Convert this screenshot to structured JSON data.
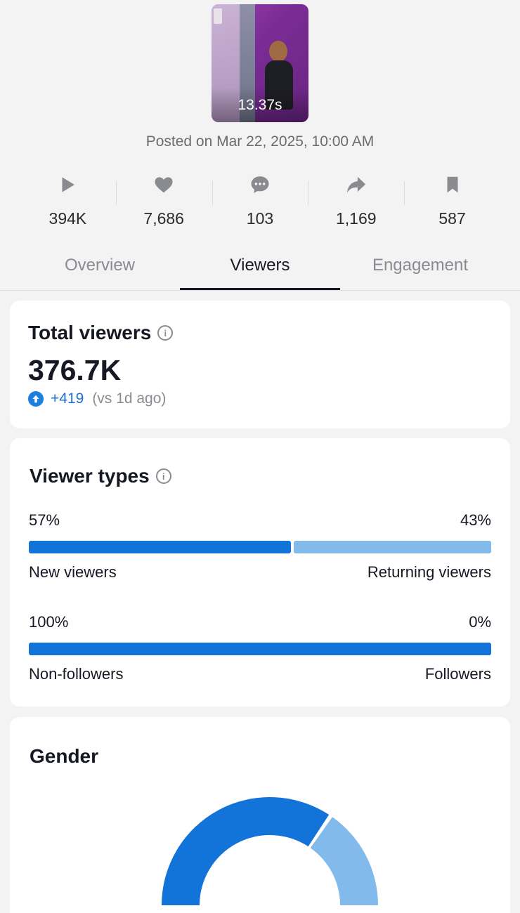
{
  "video": {
    "duration": "13.37s",
    "posted": "Posted on Mar 22, 2025, 10:00 AM"
  },
  "stats": [
    {
      "icon": "play-icon",
      "value": "394K"
    },
    {
      "icon": "heart-icon",
      "value": "7,686"
    },
    {
      "icon": "comment-icon",
      "value": "103"
    },
    {
      "icon": "share-icon",
      "value": "1,169"
    },
    {
      "icon": "bookmark-icon",
      "value": "587"
    }
  ],
  "tabs": [
    {
      "label": "Overview",
      "active": false
    },
    {
      "label": "Viewers",
      "active": true
    },
    {
      "label": "Engagement",
      "active": false
    }
  ],
  "total_viewers": {
    "title": "Total viewers",
    "value": "376.7K",
    "delta": "+419",
    "comparison": "(vs 1d ago)"
  },
  "viewer_types": {
    "title": "Viewer types",
    "splits": [
      {
        "left_pct": "57%",
        "right_pct": "43%",
        "left_label": "New viewers",
        "right_label": "Returning viewers",
        "left_value": 57,
        "right_value": 43
      },
      {
        "left_pct": "100%",
        "right_pct": "0%",
        "left_label": "Non-followers",
        "right_label": "Followers",
        "left_value": 100,
        "right_value": 0
      }
    ]
  },
  "gender": {
    "title": "Gender",
    "share_primary": 0.69
  },
  "colors": {
    "primary": "#1274d8",
    "secondary": "#82bbeb",
    "text": "#161823",
    "muted": "#8a8b91",
    "background": "#f3f3f3"
  }
}
